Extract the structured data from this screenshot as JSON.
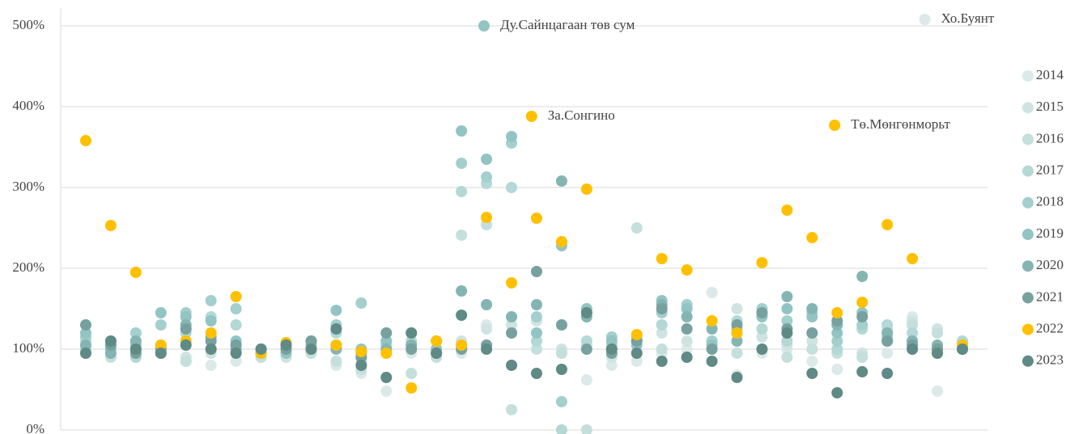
{
  "chart_data": {
    "type": "scatter",
    "x": [
      1,
      2,
      3,
      4,
      5,
      6,
      7,
      8,
      9,
      10,
      11,
      12,
      13,
      14,
      15,
      16,
      17,
      18,
      19,
      20,
      21,
      22,
      23,
      24,
      25,
      26,
      27,
      28,
      29,
      30,
      31,
      32,
      33,
      34,
      35,
      36
    ],
    "xlim": [
      0,
      37
    ],
    "ylim": [
      0,
      500
    ],
    "yticks": [
      {
        "value": 0,
        "label": "0%"
      },
      {
        "value": 100,
        "label": "100%"
      },
      {
        "value": 200,
        "label": "200%"
      },
      {
        "value": 300,
        "label": "300%"
      },
      {
        "value": 400,
        "label": "400%"
      },
      {
        "value": 500,
        "label": "500%"
      }
    ],
    "grid": true,
    "legend": "right",
    "series": [
      {
        "name": "2014",
        "color": "#dbeae8",
        "values": [
          110,
          100,
          90,
          95,
          85,
          80,
          85,
          90,
          95,
          100,
          80,
          70,
          48,
          95,
          90,
          95,
          130,
          120,
          110,
          95,
          62,
          80,
          85,
          95,
          100,
          170,
          68,
          95,
          100,
          85,
          75,
          90,
          95,
          140,
          48,
          105
        ]
      },
      {
        "name": "2015",
        "color": "#cfe4e2",
        "values": [
          95,
          105,
          95,
          100,
          90,
          95,
          100,
          95,
          90,
          95,
          100,
          85,
          105,
          100,
          95,
          110,
          125,
          130,
          135,
          100,
          105,
          90,
          95,
          120,
          110,
          100,
          150,
          115,
          105,
          110,
          100,
          95,
          120,
          135,
          125,
          100
        ]
      },
      {
        "name": "2016",
        "color": "#c4dfdc",
        "values": [
          110,
          90,
          100,
          95,
          85,
          100,
          95,
          90,
          100,
          95,
          85,
          75,
          95,
          70,
          90,
          241,
          254,
          25,
          100,
          95,
          0,
          95,
          250,
          100,
          90,
          110,
          95,
          100,
          90,
          100,
          95,
          90,
          125,
          130,
          120,
          105
        ]
      },
      {
        "name": "2017",
        "color": "#b3d8d6",
        "values": [
          100,
          110,
          90,
          105,
          120,
          140,
          130,
          100,
          95,
          110,
          120,
          90,
          105,
          110,
          95,
          295,
          305,
          300,
          110,
          0,
          110,
          105,
          115,
          130,
          125,
          100,
          135,
          125,
          110,
          120,
          100,
          125,
          130,
          120,
          100,
          110
        ]
      },
      {
        "name": "2018",
        "color": "#a3cfcd",
        "values": [
          115,
          95,
          120,
          130,
          145,
          160,
          150,
          95,
          100,
          105,
          130,
          157,
          110,
          120,
          100,
          330,
          313,
          355,
          140,
          35,
          145,
          115,
          110,
          145,
          155,
          110,
          125,
          150,
          135,
          145,
          110,
          130,
          115,
          110,
          100,
          100
        ]
      },
      {
        "name": "2019",
        "color": "#93c4c4",
        "values": [
          120,
          100,
          105,
          145,
          140,
          135,
          110,
          100,
          95,
          105,
          148,
          100,
          110,
          105,
          100,
          370,
          335,
          363,
          120,
          228,
          150,
          110,
          105,
          160,
          150,
          105,
          120,
          140,
          150,
          140,
          120,
          145,
          110,
          100,
          95,
          105
        ]
      },
      {
        "name": "2020",
        "color": "#84b5b3",
        "values": [
          105,
          95,
          110,
          100,
          130,
          115,
          100,
          95,
          105,
          110,
          100,
          95,
          100,
          105,
          110,
          172,
          155,
          140,
          155,
          308,
          140,
          100,
          110,
          155,
          140,
          125,
          110,
          145,
          165,
          150,
          130,
          190,
          120,
          110,
          105,
          105
        ]
      },
      {
        "name": "2021",
        "color": "#77a19f",
        "values": [
          130,
          105,
          95,
          100,
          125,
          110,
          105,
          95,
          100,
          110,
          105,
          90,
          120,
          100,
          95,
          100,
          105,
          120,
          196,
          130,
          100,
          95,
          110,
          150,
          125,
          100,
          130,
          145,
          125,
          120,
          135,
          140,
          110,
          105,
          100,
          100
        ]
      },
      {
        "name": "2022",
        "color": "#ffc000",
        "values": [
          358,
          253,
          195,
          105,
          110,
          120,
          165,
          95,
          108,
          100,
          105,
          97,
          95,
          52,
          110,
          105,
          263,
          182,
          262,
          233,
          298,
          100,
          118,
          212,
          198,
          135,
          120,
          207,
          272,
          238,
          145,
          158,
          254,
          212,
          95,
          105
        ]
      },
      {
        "name": "2023",
        "color": "#5f8a86",
        "values": [
          95,
          110,
          100,
          95,
          105,
          100,
          95,
          100,
          105,
          100,
          125,
          80,
          65,
          120,
          95,
          142,
          100,
          80,
          70,
          75,
          145,
          100,
          95,
          85,
          90,
          85,
          65,
          100,
          120,
          70,
          46,
          72,
          70,
          100,
          95,
          100
        ]
      }
    ],
    "annotations": [
      {
        "text": "Ду.Сайнцагаан төв сум",
        "x": 16.9,
        "y": 500,
        "color": "#93c4c4"
      },
      {
        "text": "За.Сонгино",
        "x": 18.8,
        "y": 388,
        "color": "#ffc000"
      },
      {
        "text": "Тө.Мөнгөнморьт",
        "x": 30.9,
        "y": 377,
        "color": "#ffc000"
      },
      {
        "text": "Хо.Буянт",
        "x": 34.5,
        "y": 508,
        "color": "#dbeae8"
      }
    ]
  }
}
